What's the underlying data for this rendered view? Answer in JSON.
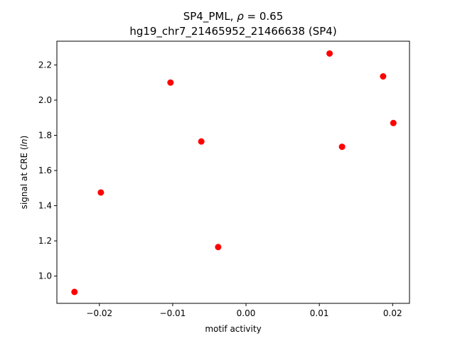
{
  "chart_data": {
    "type": "scatter",
    "title_line1": "SP4_PML, ρ = 0.65",
    "title_line2": "hg19_chr7_21465952_21466638 (SP4)",
    "xlabel": "motif activity",
    "ylabel": "signal at CRE (ln)",
    "xlim": [
      -0.0258,
      0.0223
    ],
    "ylim": [
      0.845,
      2.335
    ],
    "xticks": [
      -0.02,
      -0.01,
      0.0,
      0.01,
      0.02
    ],
    "xtick_labels": [
      "−0.02",
      "−0.01",
      "0.00",
      "0.01",
      "0.02"
    ],
    "yticks": [
      1.0,
      1.2,
      1.4,
      1.6,
      1.8,
      2.0,
      2.2
    ],
    "ytick_labels": [
      "1.0",
      "1.2",
      "1.4",
      "1.6",
      "1.8",
      "2.0",
      "2.2"
    ],
    "grid": false,
    "marker_color": "#ff0000",
    "points": [
      {
        "x": -0.0234,
        "y": 0.91
      },
      {
        "x": -0.0198,
        "y": 1.475
      },
      {
        "x": -0.0103,
        "y": 2.1
      },
      {
        "x": -0.0061,
        "y": 1.765
      },
      {
        "x": -0.0038,
        "y": 1.165
      },
      {
        "x": 0.0114,
        "y": 2.265
      },
      {
        "x": 0.0131,
        "y": 1.735
      },
      {
        "x": 0.0187,
        "y": 2.135
      },
      {
        "x": 0.0201,
        "y": 1.87
      }
    ]
  }
}
